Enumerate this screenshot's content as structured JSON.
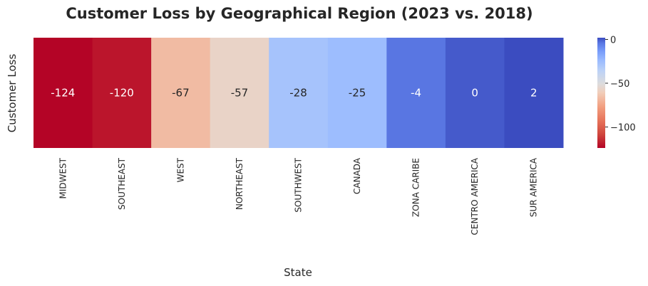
{
  "chart_data": {
    "type": "heatmap",
    "title": "Customer Loss by Geographical Region (2023 vs. 2018)",
    "xlabel": "State",
    "ylabel": "Customer Loss",
    "categories": [
      "MIDWEST",
      "SOUTHEAST",
      "WEST",
      "NORTHEAST",
      "SOUTHWEST",
      "CANADA",
      "ZONA CARIBE",
      "CENTRO AMERICA",
      "SUR AMERICA"
    ],
    "values": [
      -124,
      -120,
      -67,
      -57,
      -28,
      -25,
      -4,
      0,
      2
    ],
    "value_labels": [
      "-124",
      "-120",
      "-67",
      "-57",
      "-28",
      "-25",
      "-4",
      "0",
      "2"
    ],
    "colormap": "coolwarm_r",
    "colorbar": {
      "range": [
        -124,
        2
      ],
      "ticks": [
        0,
        -50,
        -100
      ],
      "tick_labels": [
        "0",
        "−50",
        "−100"
      ]
    },
    "grid": false,
    "legend": "colorbar-right"
  }
}
